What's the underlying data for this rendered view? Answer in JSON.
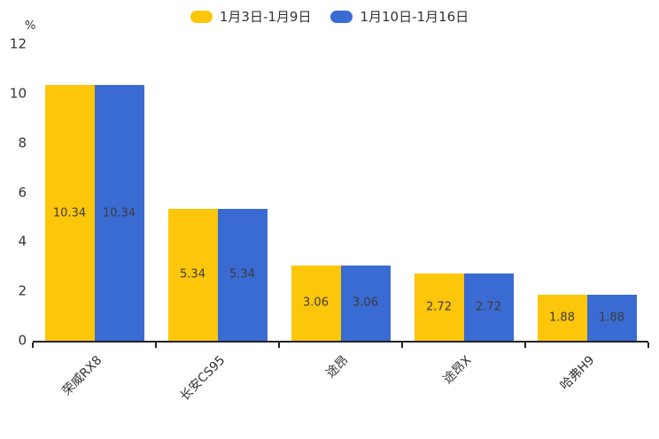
{
  "chart_data": {
    "type": "bar",
    "title": "",
    "categories": [
      "荣威RX8",
      "长安CS95",
      "途昂",
      "途昂X",
      "哈弗H9"
    ],
    "series": [
      {
        "name": "1月3日-1月9日",
        "values": [
          10.34,
          5.34,
          3.06,
          2.72,
          1.88
        ],
        "color": "#FCC60A"
      },
      {
        "name": "1月10日-1月16日",
        "values": [
          10.34,
          5.34,
          3.06,
          2.72,
          1.88
        ],
        "color": "#3A6BD2"
      }
    ],
    "ylabel": "%",
    "xlabel": "",
    "ylim": [
      0,
      12
    ],
    "yticks": [
      0,
      2,
      4,
      6,
      8,
      10,
      12
    ],
    "grid": false,
    "legend_position": "top-center",
    "value_label_color": "#3d3d3d",
    "axis_color": "#222222"
  }
}
